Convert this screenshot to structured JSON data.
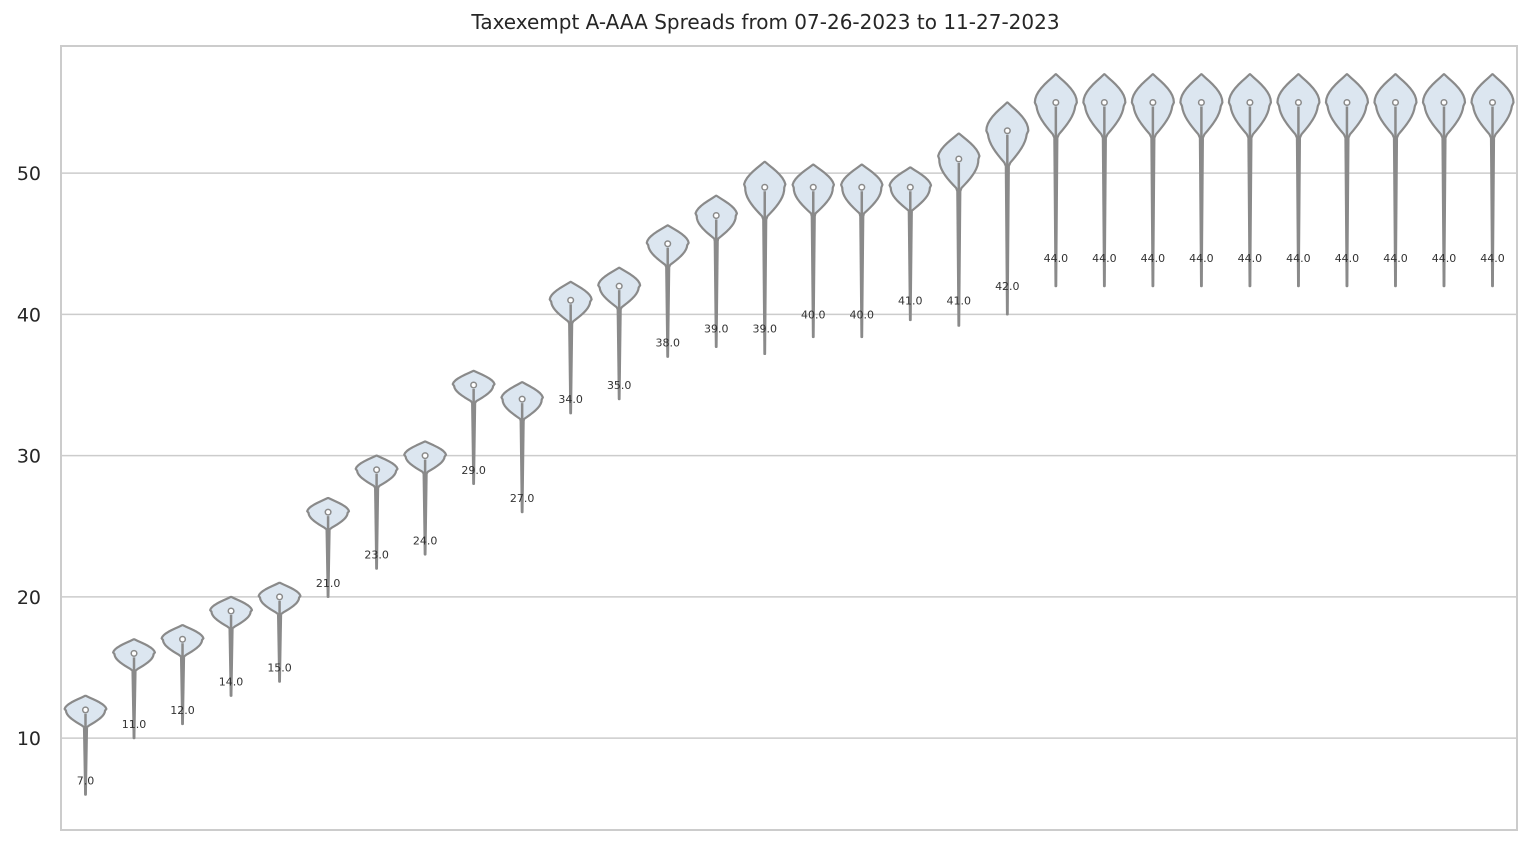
{
  "chart_data": {
    "type": "violin",
    "title": "Taxexempt A-AAA Spreads from 07-26-2023 to 11-27-2023",
    "xlabel": "",
    "ylabel": "",
    "ylim": [
      3.5,
      59
    ],
    "yticks": [
      10,
      20,
      30,
      40,
      50
    ],
    "grid": "horizontal",
    "colors": {
      "fill": "#dce6f0",
      "stroke": "#8a8a8a",
      "grid": "#cccccc",
      "frame": "#cccccc",
      "text": "#262626"
    },
    "violins": [
      {
        "median": 12,
        "min": 6,
        "max": 13,
        "label": "7.0"
      },
      {
        "median": 16,
        "min": 10,
        "max": 17,
        "label": "11.0"
      },
      {
        "median": 17,
        "min": 11,
        "max": 18,
        "label": "12.0"
      },
      {
        "median": 19,
        "min": 13,
        "max": 20,
        "label": "14.0"
      },
      {
        "median": 20,
        "min": 14,
        "max": 21,
        "label": "15.0"
      },
      {
        "median": 26,
        "min": 20,
        "max": 27,
        "label": "21.0"
      },
      {
        "median": 29,
        "min": 22,
        "max": 30,
        "label": "23.0"
      },
      {
        "median": 30,
        "min": 23,
        "max": 31,
        "label": "24.0"
      },
      {
        "median": 35,
        "min": 28,
        "max": 36,
        "label": "29.0"
      },
      {
        "median": 34,
        "min": 26,
        "max": 35.2,
        "label": "27.0"
      },
      {
        "median": 41,
        "min": 33,
        "max": 42.3,
        "label": "34.0"
      },
      {
        "median": 42,
        "min": 34,
        "max": 43.3,
        "label": "35.0"
      },
      {
        "median": 45,
        "min": 37,
        "max": 46.3,
        "label": "38.0"
      },
      {
        "median": 47,
        "min": 37.7,
        "max": 48.4,
        "label": "39.0"
      },
      {
        "median": 49,
        "min": 37.2,
        "max": 50.8,
        "label": "39.0"
      },
      {
        "median": 49,
        "min": 38.4,
        "max": 50.6,
        "label": "40.0"
      },
      {
        "median": 49,
        "min": 38.4,
        "max": 50.6,
        "label": "40.0"
      },
      {
        "median": 49,
        "min": 39.6,
        "max": 50.4,
        "label": "41.0"
      },
      {
        "median": 51,
        "min": 39.2,
        "max": 52.8,
        "label": "41.0"
      },
      {
        "median": 53,
        "min": 40,
        "max": 55,
        "label": "42.0"
      },
      {
        "median": 55,
        "min": 42,
        "max": 57,
        "label": "44.0"
      },
      {
        "median": 55,
        "min": 42,
        "max": 57,
        "label": "44.0"
      },
      {
        "median": 55,
        "min": 42,
        "max": 57,
        "label": "44.0"
      },
      {
        "median": 55,
        "min": 42,
        "max": 57,
        "label": "44.0"
      },
      {
        "median": 55,
        "min": 42,
        "max": 57,
        "label": "44.0"
      },
      {
        "median": 55,
        "min": 42,
        "max": 57,
        "label": "44.0"
      },
      {
        "median": 55,
        "min": 42,
        "max": 57,
        "label": "44.0"
      },
      {
        "median": 55,
        "min": 42,
        "max": 57,
        "label": "44.0"
      },
      {
        "median": 55,
        "min": 42,
        "max": 57,
        "label": "44.0"
      },
      {
        "median": 55,
        "min": 42,
        "max": 57,
        "label": "44.0"
      }
    ]
  }
}
